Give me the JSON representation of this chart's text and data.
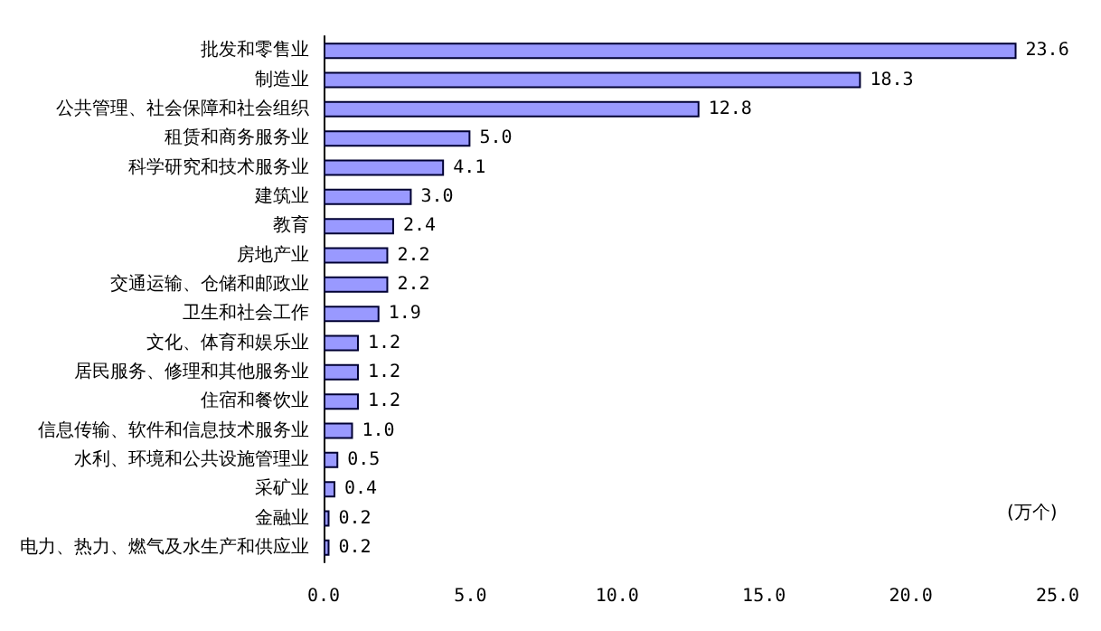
{
  "chart_data": {
    "type": "bar",
    "orientation": "horizontal",
    "xlabel": "(万个)",
    "categories": [
      "批发和零售业",
      "制造业",
      "公共管理、社会保障和社会组织",
      "租赁和商务服务业",
      "科学研究和技术服务业",
      "建筑业",
      "教育",
      "房地产业",
      "交通运输、仓储和邮政业",
      "卫生和社会工作",
      "文化、体育和娱乐业",
      "居民服务、修理和其他服务业",
      "住宿和餐饮业",
      "信息传输、软件和信息技术服务业",
      "水利、环境和公共设施管理业",
      "采矿业",
      "金融业",
      "电力、热力、燃气及水生产和供应业"
    ],
    "values": [
      23.6,
      18.3,
      12.8,
      5.0,
      4.1,
      3.0,
      2.4,
      2.2,
      2.2,
      1.9,
      1.2,
      1.2,
      1.2,
      1.0,
      0.5,
      0.4,
      0.2,
      0.2
    ],
    "value_labels": [
      "23.6",
      "18.3",
      "12.8",
      "5.0",
      "4.1",
      "3.0",
      "2.4",
      "2.2",
      "2.2",
      "1.9",
      "1.2",
      "1.2",
      "1.2",
      "1.0",
      "0.5",
      "0.4",
      "0.2",
      "0.2"
    ],
    "color": "#9999ff",
    "xlim": [
      0,
      25
    ],
    "xticks": [
      {
        "value": 0,
        "label": "0.0"
      },
      {
        "value": 5,
        "label": "5.0"
      },
      {
        "value": 10,
        "label": "10.0"
      },
      {
        "value": 15,
        "label": "15.0"
      },
      {
        "value": 20,
        "label": "20.0"
      },
      {
        "value": 25,
        "label": "25.0"
      }
    ],
    "grid": false
  }
}
